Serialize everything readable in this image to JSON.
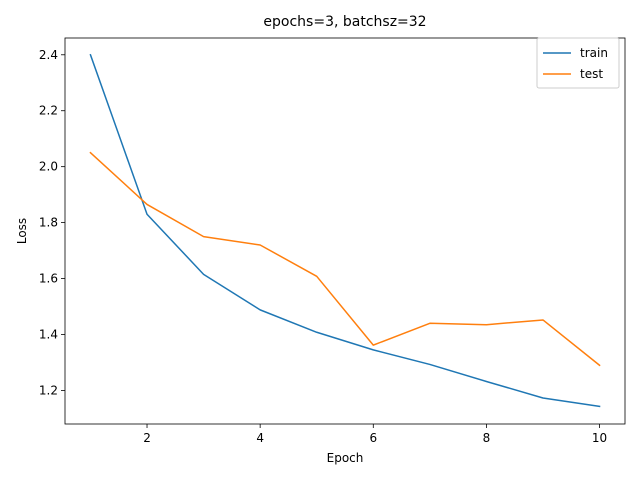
{
  "chart_data": {
    "type": "line",
    "title": "epochs=3, batchsz=32",
    "xlabel": "Epoch",
    "ylabel": "Loss",
    "x": [
      1,
      2,
      3,
      4,
      5,
      6,
      7,
      8,
      9,
      10
    ],
    "xlim": [
      0.55,
      10.45
    ],
    "ylim": [
      1.08,
      2.46
    ],
    "xticks": [
      2,
      4,
      6,
      8,
      10
    ],
    "yticks": [
      1.2,
      1.4,
      1.6,
      1.8,
      2.0,
      2.2,
      2.4
    ],
    "xtick_labels": [
      "2",
      "4",
      "6",
      "8",
      "10"
    ],
    "ytick_labels": [
      "1.2",
      "1.4",
      "1.6",
      "1.8",
      "2.0",
      "2.2",
      "2.4"
    ],
    "grid": false,
    "legend_position": "top-right",
    "series": [
      {
        "name": "train",
        "color": "#1f77b4",
        "values": [
          2.4,
          1.83,
          1.615,
          1.488,
          1.408,
          1.345,
          1.293,
          1.232,
          1.173,
          1.143
        ]
      },
      {
        "name": "test",
        "color": "#ff7f0e",
        "values": [
          2.05,
          1.865,
          1.75,
          1.72,
          1.608,
          1.362,
          1.44,
          1.435,
          1.452,
          1.29
        ]
      }
    ]
  }
}
